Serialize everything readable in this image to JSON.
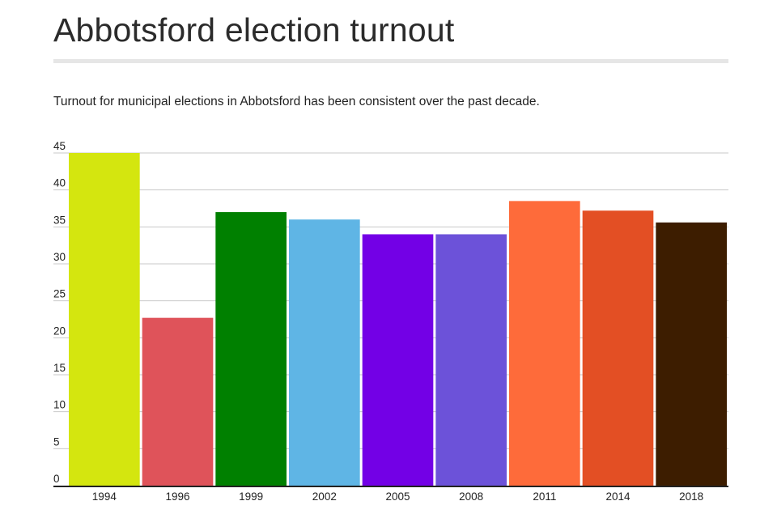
{
  "title": "Abbotsford election turnout",
  "subtitle": "Turnout for municipal elections in Abbotsford has been consistent over the past decade.",
  "chart_data": {
    "type": "bar",
    "title": "Abbotsford election turnout",
    "subtitle": "Turnout for municipal elections in Abbotsford has been consistent over the past decade.",
    "xlabel": "",
    "ylabel": "",
    "categories": [
      "1994",
      "1996",
      "1999",
      "2002",
      "2005",
      "2008",
      "2011",
      "2014",
      "2018"
    ],
    "values": [
      45,
      22.7,
      37,
      36,
      34,
      34,
      38.5,
      37.2,
      35.6
    ],
    "colors": [
      "#d4e60f",
      "#df535a",
      "#008000",
      "#5fb5e5",
      "#7300e6",
      "#6c52d9",
      "#fe6b3a",
      "#e34f24",
      "#3d1d00"
    ],
    "ylim": [
      0,
      45
    ],
    "yticks": [
      0,
      5,
      10,
      15,
      20,
      25,
      30,
      35,
      40,
      45
    ],
    "grid": true,
    "legend": "none"
  }
}
